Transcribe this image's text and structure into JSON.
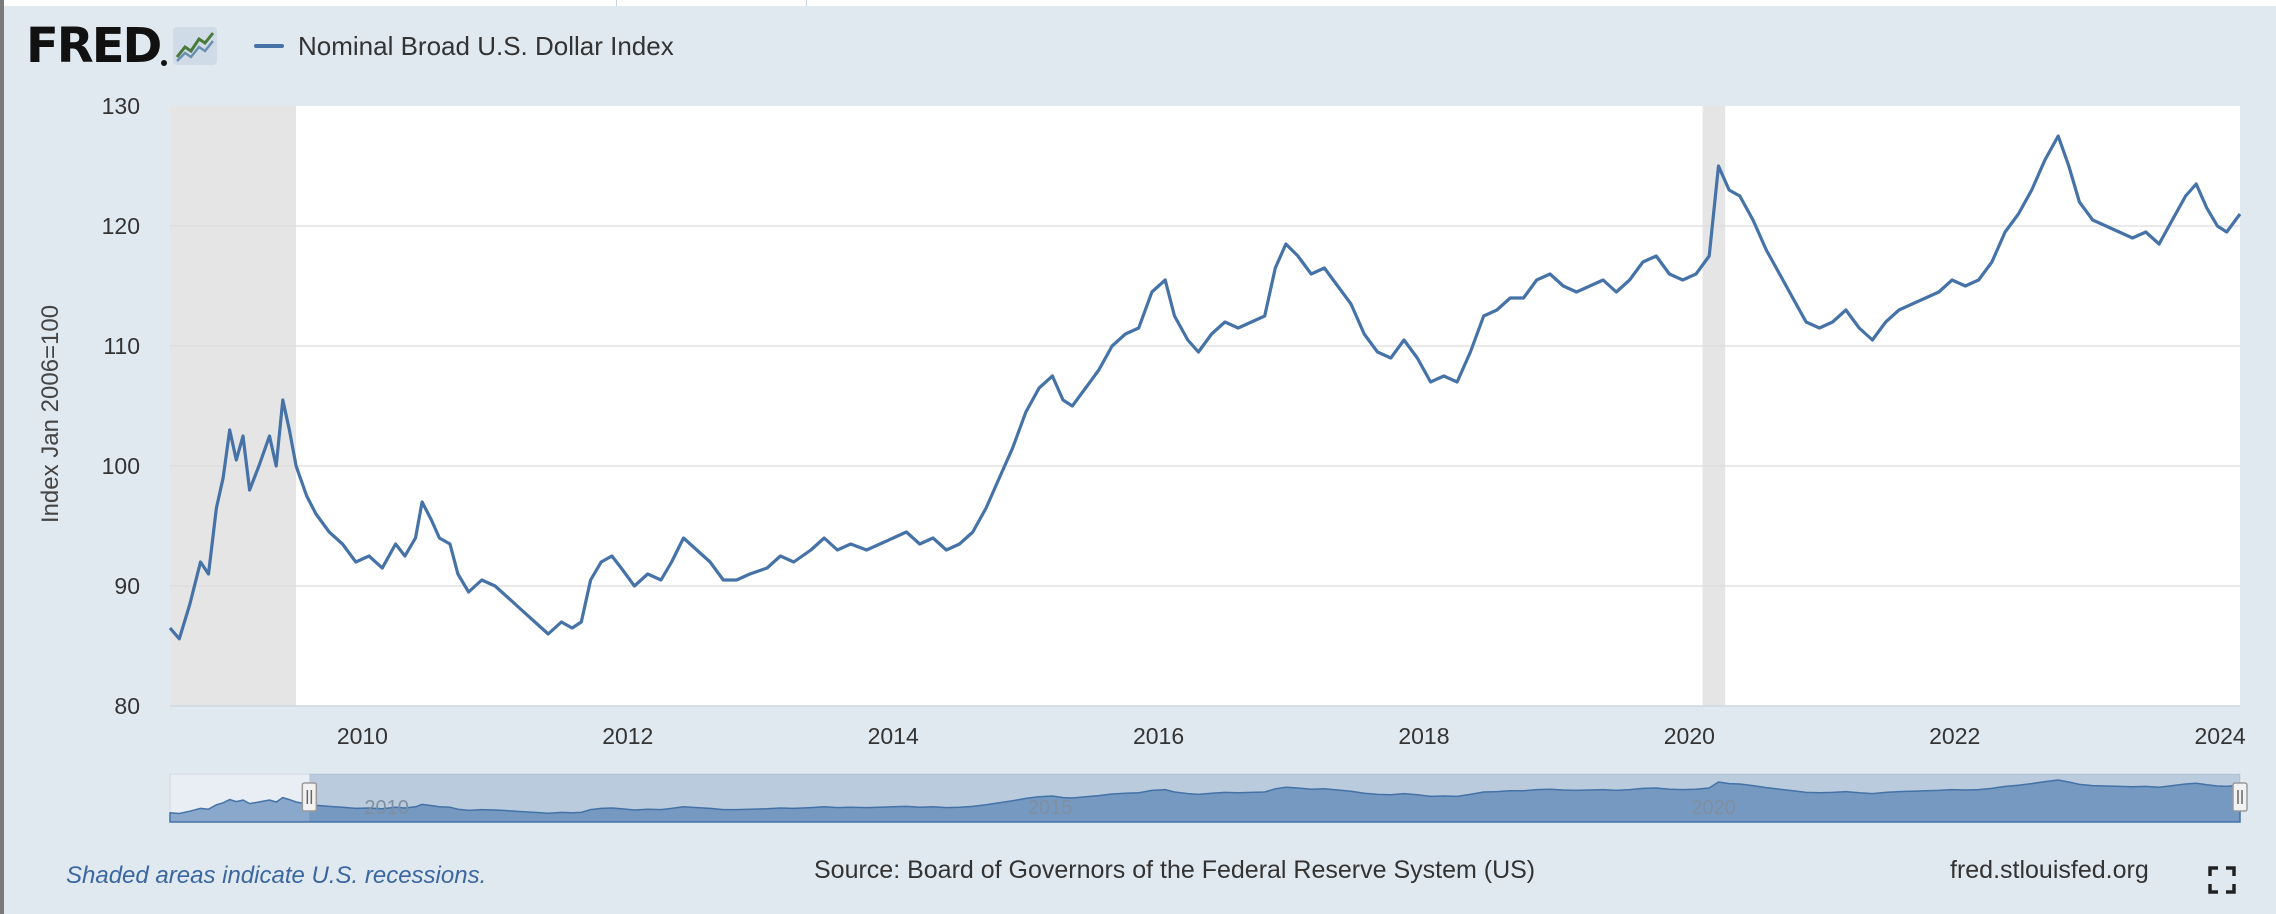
{
  "header": {
    "logo_text": "FRED",
    "logo_icon": "fred-graph-icon"
  },
  "chart_data": {
    "type": "line",
    "title": "",
    "ylabel": "Index Jan 2006=100",
    "xlabel": "",
    "ylim": [
      80,
      130
    ],
    "xlim": [
      2008.55,
      2024.15
    ],
    "yticks": [
      80,
      90,
      100,
      110,
      120,
      130
    ],
    "xticks": [
      2010,
      2012,
      2014,
      2016,
      2018,
      2020,
      2022,
      2024
    ],
    "grid": true,
    "legend_placement": "top-left",
    "recessions": [
      [
        2008.55,
        2009.5
      ],
      [
        2020.1,
        2020.27
      ]
    ],
    "series": [
      {
        "name": "Nominal Broad U.S. Dollar Index",
        "color": "#4572a7",
        "points": [
          [
            2008.55,
            86.5
          ],
          [
            2008.62,
            85.6
          ],
          [
            2008.7,
            88.5
          ],
          [
            2008.78,
            92.0
          ],
          [
            2008.84,
            91.0
          ],
          [
            2008.9,
            96.5
          ],
          [
            2008.95,
            99.0
          ],
          [
            2009.0,
            103.0
          ],
          [
            2009.05,
            100.5
          ],
          [
            2009.1,
            102.5
          ],
          [
            2009.15,
            98.0
          ],
          [
            2009.22,
            100.0
          ],
          [
            2009.3,
            102.5
          ],
          [
            2009.35,
            100.0
          ],
          [
            2009.4,
            105.5
          ],
          [
            2009.45,
            103.0
          ],
          [
            2009.5,
            100.0
          ],
          [
            2009.58,
            97.5
          ],
          [
            2009.65,
            96.0
          ],
          [
            2009.75,
            94.5
          ],
          [
            2009.85,
            93.5
          ],
          [
            2009.95,
            92.0
          ],
          [
            2010.05,
            92.5
          ],
          [
            2010.15,
            91.5
          ],
          [
            2010.25,
            93.5
          ],
          [
            2010.32,
            92.5
          ],
          [
            2010.4,
            94.0
          ],
          [
            2010.45,
            97.0
          ],
          [
            2010.52,
            95.5
          ],
          [
            2010.58,
            94.0
          ],
          [
            2010.66,
            93.5
          ],
          [
            2010.72,
            91.0
          ],
          [
            2010.8,
            89.5
          ],
          [
            2010.9,
            90.5
          ],
          [
            2011.0,
            90.0
          ],
          [
            2011.1,
            89.0
          ],
          [
            2011.2,
            88.0
          ],
          [
            2011.3,
            87.0
          ],
          [
            2011.4,
            86.0
          ],
          [
            2011.5,
            87.0
          ],
          [
            2011.58,
            86.5
          ],
          [
            2011.65,
            87.0
          ],
          [
            2011.72,
            90.5
          ],
          [
            2011.8,
            92.0
          ],
          [
            2011.88,
            92.5
          ],
          [
            2011.95,
            91.5
          ],
          [
            2012.05,
            90.0
          ],
          [
            2012.15,
            91.0
          ],
          [
            2012.25,
            90.5
          ],
          [
            2012.33,
            92.0
          ],
          [
            2012.42,
            94.0
          ],
          [
            2012.52,
            93.0
          ],
          [
            2012.62,
            92.0
          ],
          [
            2012.72,
            90.5
          ],
          [
            2012.82,
            90.5
          ],
          [
            2012.92,
            91.0
          ],
          [
            2013.05,
            91.5
          ],
          [
            2013.15,
            92.5
          ],
          [
            2013.25,
            92.0
          ],
          [
            2013.38,
            93.0
          ],
          [
            2013.48,
            94.0
          ],
          [
            2013.58,
            93.0
          ],
          [
            2013.68,
            93.5
          ],
          [
            2013.8,
            93.0
          ],
          [
            2013.9,
            93.5
          ],
          [
            2014.0,
            94.0
          ],
          [
            2014.1,
            94.5
          ],
          [
            2014.2,
            93.5
          ],
          [
            2014.3,
            94.0
          ],
          [
            2014.4,
            93.0
          ],
          [
            2014.5,
            93.5
          ],
          [
            2014.6,
            94.5
          ],
          [
            2014.7,
            96.5
          ],
          [
            2014.8,
            99.0
          ],
          [
            2014.9,
            101.5
          ],
          [
            2015.0,
            104.5
          ],
          [
            2015.1,
            106.5
          ],
          [
            2015.2,
            107.5
          ],
          [
            2015.28,
            105.5
          ],
          [
            2015.35,
            105.0
          ],
          [
            2015.45,
            106.5
          ],
          [
            2015.55,
            108.0
          ],
          [
            2015.65,
            110.0
          ],
          [
            2015.75,
            111.0
          ],
          [
            2015.85,
            111.5
          ],
          [
            2015.95,
            114.5
          ],
          [
            2016.05,
            115.5
          ],
          [
            2016.12,
            112.5
          ],
          [
            2016.22,
            110.5
          ],
          [
            2016.3,
            109.5
          ],
          [
            2016.4,
            111.0
          ],
          [
            2016.5,
            112.0
          ],
          [
            2016.6,
            111.5
          ],
          [
            2016.7,
            112.0
          ],
          [
            2016.8,
            112.5
          ],
          [
            2016.88,
            116.5
          ],
          [
            2016.96,
            118.5
          ],
          [
            2017.05,
            117.5
          ],
          [
            2017.15,
            116.0
          ],
          [
            2017.25,
            116.5
          ],
          [
            2017.35,
            115.0
          ],
          [
            2017.45,
            113.5
          ],
          [
            2017.55,
            111.0
          ],
          [
            2017.65,
            109.5
          ],
          [
            2017.75,
            109.0
          ],
          [
            2017.85,
            110.5
          ],
          [
            2017.95,
            109.0
          ],
          [
            2018.05,
            107.0
          ],
          [
            2018.15,
            107.5
          ],
          [
            2018.25,
            107.0
          ],
          [
            2018.35,
            109.5
          ],
          [
            2018.45,
            112.5
          ],
          [
            2018.55,
            113.0
          ],
          [
            2018.65,
            114.0
          ],
          [
            2018.75,
            114.0
          ],
          [
            2018.85,
            115.5
          ],
          [
            2018.95,
            116.0
          ],
          [
            2019.05,
            115.0
          ],
          [
            2019.15,
            114.5
          ],
          [
            2019.25,
            115.0
          ],
          [
            2019.35,
            115.5
          ],
          [
            2019.45,
            114.5
          ],
          [
            2019.55,
            115.5
          ],
          [
            2019.65,
            117.0
          ],
          [
            2019.75,
            117.5
          ],
          [
            2019.85,
            116.0
          ],
          [
            2019.95,
            115.5
          ],
          [
            2020.05,
            116.0
          ],
          [
            2020.15,
            117.5
          ],
          [
            2020.22,
            125.0
          ],
          [
            2020.3,
            123.0
          ],
          [
            2020.38,
            122.5
          ],
          [
            2020.48,
            120.5
          ],
          [
            2020.58,
            118.0
          ],
          [
            2020.68,
            116.0
          ],
          [
            2020.78,
            114.0
          ],
          [
            2020.88,
            112.0
          ],
          [
            2020.98,
            111.5
          ],
          [
            2021.08,
            112.0
          ],
          [
            2021.18,
            113.0
          ],
          [
            2021.28,
            111.5
          ],
          [
            2021.38,
            110.5
          ],
          [
            2021.48,
            112.0
          ],
          [
            2021.58,
            113.0
          ],
          [
            2021.68,
            113.5
          ],
          [
            2021.78,
            114.0
          ],
          [
            2021.88,
            114.5
          ],
          [
            2021.98,
            115.5
          ],
          [
            2022.08,
            115.0
          ],
          [
            2022.18,
            115.5
          ],
          [
            2022.28,
            117.0
          ],
          [
            2022.38,
            119.5
          ],
          [
            2022.48,
            121.0
          ],
          [
            2022.58,
            123.0
          ],
          [
            2022.68,
            125.5
          ],
          [
            2022.78,
            127.5
          ],
          [
            2022.86,
            125.0
          ],
          [
            2022.94,
            122.0
          ],
          [
            2023.04,
            120.5
          ],
          [
            2023.14,
            120.0
          ],
          [
            2023.24,
            119.5
          ],
          [
            2023.34,
            119.0
          ],
          [
            2023.44,
            119.5
          ],
          [
            2023.54,
            118.5
          ],
          [
            2023.64,
            120.5
          ],
          [
            2023.74,
            122.5
          ],
          [
            2023.82,
            123.5
          ],
          [
            2023.9,
            121.5
          ],
          [
            2023.98,
            120.0
          ],
          [
            2024.05,
            119.5
          ],
          [
            2024.15,
            121.0
          ]
        ]
      }
    ],
    "navigator": {
      "range": [
        2009.6,
        2024.15
      ],
      "labels": [
        "2010",
        "2015",
        "2020"
      ]
    }
  },
  "footer": {
    "note": "Shaded areas indicate U.S. recessions.",
    "source": "Source: Board of Governors of the Federal Reserve System (US)",
    "site": "fred.stlouisfed.org"
  }
}
